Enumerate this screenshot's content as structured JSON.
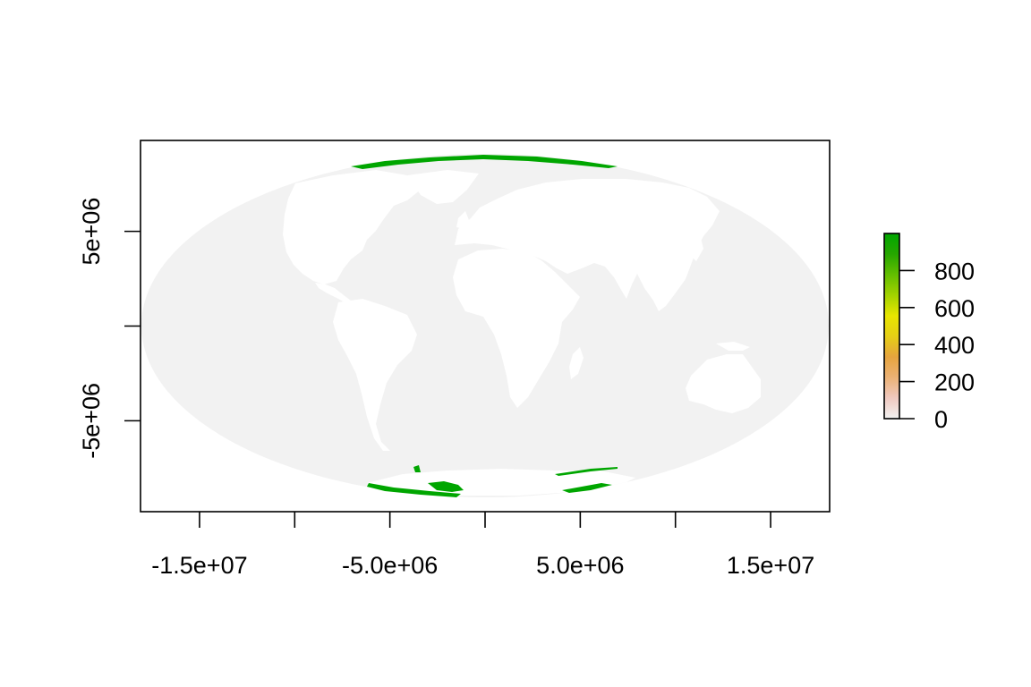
{
  "map": {
    "projection": "mollweide",
    "background_color": "#ffffff",
    "ocean_color": "#f2f2f2",
    "land_color": "#ffffff",
    "value_color": "#00a600",
    "x_axis": {
      "range": [
        -18100000,
        18100000
      ],
      "ticks": [
        -15000000,
        -10000000,
        -5000000,
        0,
        5000000,
        10000000,
        15000000
      ],
      "labels": [
        {
          "value": -15000000,
          "text": "-1.5e+07"
        },
        {
          "value": -5000000,
          "text": "-5.0e+06"
        },
        {
          "value": 5000000,
          "text": "5.0e+06"
        },
        {
          "value": 15000000,
          "text": "1.5e+07"
        }
      ]
    },
    "y_axis": {
      "range": [
        -9800000,
        9800000
      ],
      "ticks": [
        -5000000,
        0,
        5000000
      ],
      "labels": [
        {
          "value": 5000000,
          "text": "5e+06"
        },
        {
          "value": -5000000,
          "text": "-5e+06"
        }
      ]
    }
  },
  "legend": {
    "range": [
      0,
      1000
    ],
    "ticks": [
      {
        "value": 0,
        "text": "0"
      },
      {
        "value": 200,
        "text": "200"
      },
      {
        "value": 400,
        "text": "400"
      },
      {
        "value": 600,
        "text": "600"
      },
      {
        "value": 800,
        "text": "800"
      }
    ],
    "colors": [
      "#f2f2f2",
      "#f0c9c0",
      "#ebb175",
      "#e6a43e",
      "#e6cf15",
      "#e8e600",
      "#a3d200",
      "#63be00",
      "#26a600",
      "#00a600"
    ]
  }
}
